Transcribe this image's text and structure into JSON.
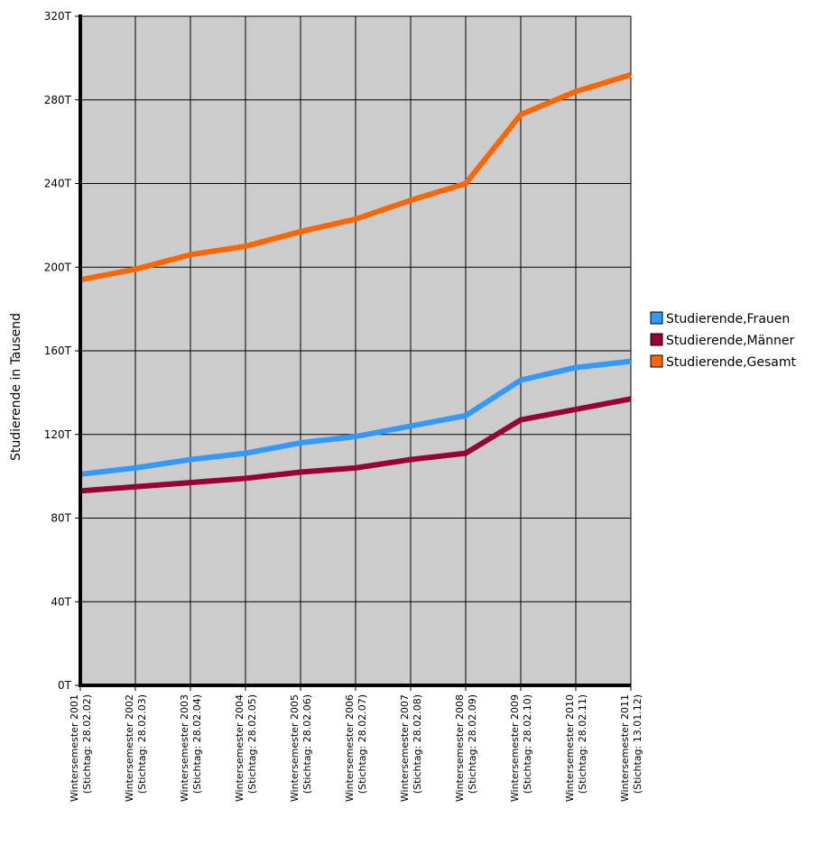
{
  "chart_data": {
    "type": "line",
    "ylabel": "Studierende in Tausend",
    "ylim": [
      0,
      320
    ],
    "yticks": [
      "0T",
      "40T",
      "80T",
      "120T",
      "160T",
      "200T",
      "240T",
      "280T",
      "320T"
    ],
    "grid": true,
    "legend_position": "right",
    "categories": [
      [
        "Wintersemester 2001",
        "(Stichtag: 28.02.02)"
      ],
      [
        "Wintersemester 2002",
        "(Stichtag: 28.02.03)"
      ],
      [
        "Wintersemester 2003",
        "(Stichtag: 28.02.04)"
      ],
      [
        "Wintersemester 2004",
        "(Stichtag: 28.02.05)"
      ],
      [
        "Wintersemester 2005",
        "(Stichtag: 28.02.06)"
      ],
      [
        "Wintersemester 2006",
        "(Stichtag: 28.02.07)"
      ],
      [
        "Wintersemester 2007",
        "(Stichtag: 28.02.08)"
      ],
      [
        "Wintersemester 2008",
        "(Stichtag: 28.02.09)"
      ],
      [
        "Wintersemester 2009",
        "(Stichtag: 28.02.10)"
      ],
      [
        "Wintersemester 2010",
        "(Stichtag: 28.02.11)"
      ],
      [
        "Wintersemester 2011",
        "(Stichtag: 13.01.12)"
      ]
    ],
    "series": [
      {
        "name": "Studierende,Frauen",
        "color": "#3399ff",
        "values": [
          101,
          104,
          108,
          111,
          116,
          119,
          124,
          129,
          146,
          152,
          155
        ]
      },
      {
        "name": "Studierende,Männer",
        "color": "#990033",
        "values": [
          93,
          95,
          97,
          99,
          102,
          104,
          108,
          111,
          127,
          132,
          137
        ]
      },
      {
        "name": "Studierende,Gesamt",
        "color": "#ff6600",
        "values": [
          194,
          199,
          206,
          210,
          217,
          223,
          232,
          240,
          273,
          284,
          292
        ]
      }
    ],
    "plot_background": "#cccccc"
  }
}
